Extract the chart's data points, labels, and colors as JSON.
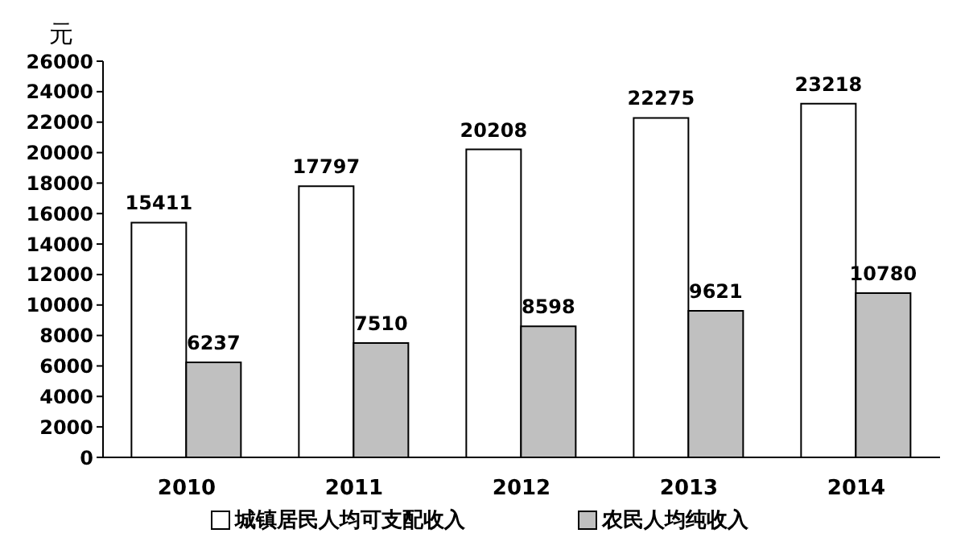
{
  "chart_data": {
    "type": "bar",
    "ylabel": "元",
    "categories": [
      "2010",
      "2011",
      "2012",
      "2013",
      "2014"
    ],
    "series": [
      {
        "name": "城镇居民人均可支配收入",
        "color": "#ffffff",
        "values": [
          15411,
          17797,
          20208,
          22275,
          23218
        ]
      },
      {
        "name": "农民人均纯收入",
        "color": "#c0c0c0",
        "values": [
          6237,
          7510,
          8598,
          9621,
          10780
        ]
      }
    ],
    "ylim": [
      0,
      26000
    ],
    "yticks": [
      0,
      2000,
      4000,
      6000,
      8000,
      10000,
      12000,
      14000,
      16000,
      18000,
      20000,
      22000,
      24000,
      26000
    ],
    "data_labels": true,
    "grid": false,
    "legend": "bottom"
  }
}
